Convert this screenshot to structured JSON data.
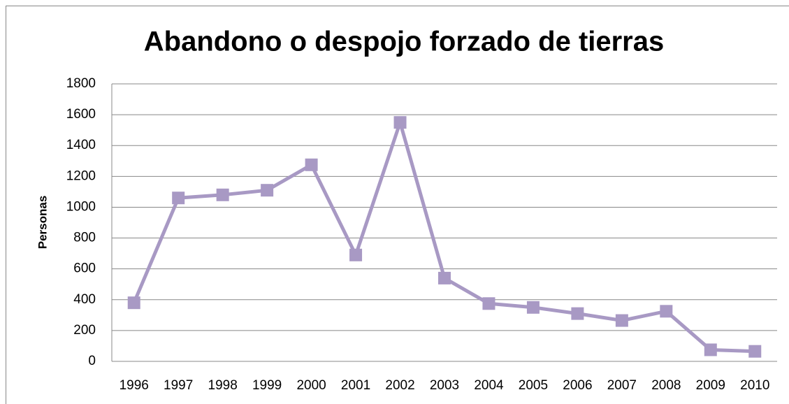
{
  "chart_data": {
    "type": "line",
    "title": "Abandono o despojo forzado de tierras",
    "y_label": "Personas",
    "categories": [
      "1996",
      "1997",
      "1998",
      "1999",
      "2000",
      "2001",
      "2002",
      "2003",
      "2004",
      "2005",
      "2006",
      "2007",
      "2008",
      "2009",
      "2010"
    ],
    "series": [
      {
        "name": "Personas",
        "color": "#a899c4",
        "values": [
          380,
          1060,
          1080,
          1110,
          1275,
          690,
          1550,
          540,
          375,
          350,
          310,
          265,
          325,
          75,
          65
        ]
      }
    ],
    "ylim": [
      0,
      1800
    ],
    "yticks": [
      0,
      200,
      400,
      600,
      800,
      1000,
      1200,
      1400,
      1600,
      1800
    ],
    "grid": true,
    "legend": false
  }
}
